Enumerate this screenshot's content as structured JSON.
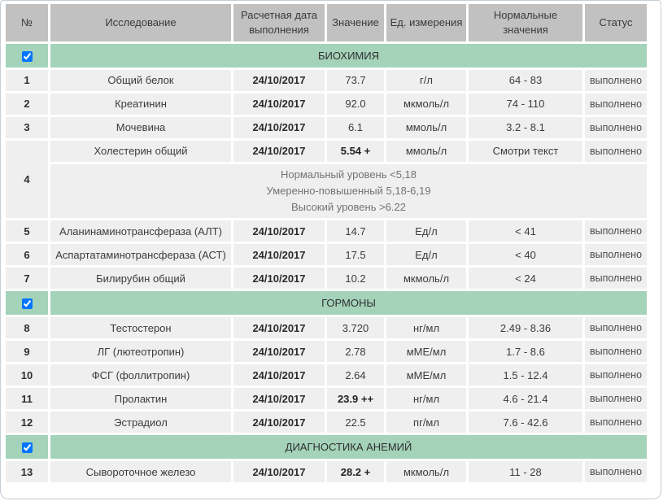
{
  "columns": [
    "№",
    "Исследование",
    "Расчетная дата выполнения",
    "Значение",
    "Ед. измерения",
    "Нормальные значения",
    "Статус"
  ],
  "colors": {
    "section_green": "#a4d3ba",
    "header_gray": "#c1c1c1",
    "cell_gray": "#efefef",
    "panel_border": "#c6cfd6"
  },
  "sections": [
    {
      "title": "БИОХИМИЯ",
      "checked": true,
      "rows": [
        {
          "num": "1",
          "test": "Общий белок",
          "date": "24/10/2017",
          "value": "73.7",
          "flagged": false,
          "unit": "г/л",
          "normal": "64 - 83",
          "status": "выполнено"
        },
        {
          "num": "2",
          "test": "Креатинин",
          "date": "24/10/2017",
          "value": "92.0",
          "flagged": false,
          "unit": "мкмоль/л",
          "normal": "74 - 110",
          "status": "выполнено"
        },
        {
          "num": "3",
          "test": "Мочевина",
          "date": "24/10/2017",
          "value": "6.1",
          "flagged": false,
          "unit": "ммоль/л",
          "normal": "3.2 - 8.1",
          "status": "выполнено"
        },
        {
          "num": "4",
          "test": "Холестерин общий",
          "date": "24/10/2017",
          "value": "5.54 +",
          "flagged": true,
          "unit": "ммоль/л",
          "normal": "Смотри текст",
          "status": "выполнено",
          "note": [
            "Нормальный уровень <5,18",
            "Умеренно-повышенный 5,18-6,19",
            "Высокий уровень >6.22"
          ]
        },
        {
          "num": "5",
          "test": "Аланинаминотрансфераза (АЛТ)",
          "date": "24/10/2017",
          "value": "14.7",
          "flagged": false,
          "unit": "Ед/л",
          "normal": "< 41",
          "status": "выполнено"
        },
        {
          "num": "6",
          "test": "Аспартатаминотрансфераза (АСТ)",
          "date": "24/10/2017",
          "value": "17.5",
          "flagged": false,
          "unit": "Ед/л",
          "normal": "< 40",
          "status": "выполнено"
        },
        {
          "num": "7",
          "test": "Билирубин общий",
          "date": "24/10/2017",
          "value": "10.2",
          "flagged": false,
          "unit": "мкмоль/л",
          "normal": "< 24",
          "status": "выполнено"
        }
      ]
    },
    {
      "title": "ГОРМОНЫ",
      "checked": true,
      "rows": [
        {
          "num": "8",
          "test": "Тестостерон",
          "date": "24/10/2017",
          "value": "3.720",
          "flagged": false,
          "unit": "нг/мл",
          "normal": "2.49 - 8.36",
          "status": "выполнено"
        },
        {
          "num": "9",
          "test": "ЛГ (лютеотропин)",
          "date": "24/10/2017",
          "value": "2.78",
          "flagged": false,
          "unit": "мМЕ/мл",
          "normal": "1.7 - 8.6",
          "status": "выполнено"
        },
        {
          "num": "10",
          "test": "ФСГ (фоллитропин)",
          "date": "24/10/2017",
          "value": "2.64",
          "flagged": false,
          "unit": "мМЕ/мл",
          "normal": "1.5 - 12.4",
          "status": "выполнено"
        },
        {
          "num": "11",
          "test": "Пролактин",
          "date": "24/10/2017",
          "value": "23.9 ++",
          "flagged": true,
          "unit": "нг/мл",
          "normal": "4.6 - 21.4",
          "status": "выполнено"
        },
        {
          "num": "12",
          "test": "Эстрадиол",
          "date": "24/10/2017",
          "value": "22.5",
          "flagged": false,
          "unit": "пг/мл",
          "normal": "7.6 - 42.6",
          "status": "выполнено"
        }
      ]
    },
    {
      "title": "ДИАГНОСТИКА АНЕМИЙ",
      "checked": true,
      "rows": [
        {
          "num": "13",
          "test": "Сывороточное железо",
          "date": "24/10/2017",
          "value": "28.2 +",
          "flagged": true,
          "unit": "мкмоль/л",
          "normal": "11 - 28",
          "status": "выполнено"
        }
      ]
    }
  ]
}
